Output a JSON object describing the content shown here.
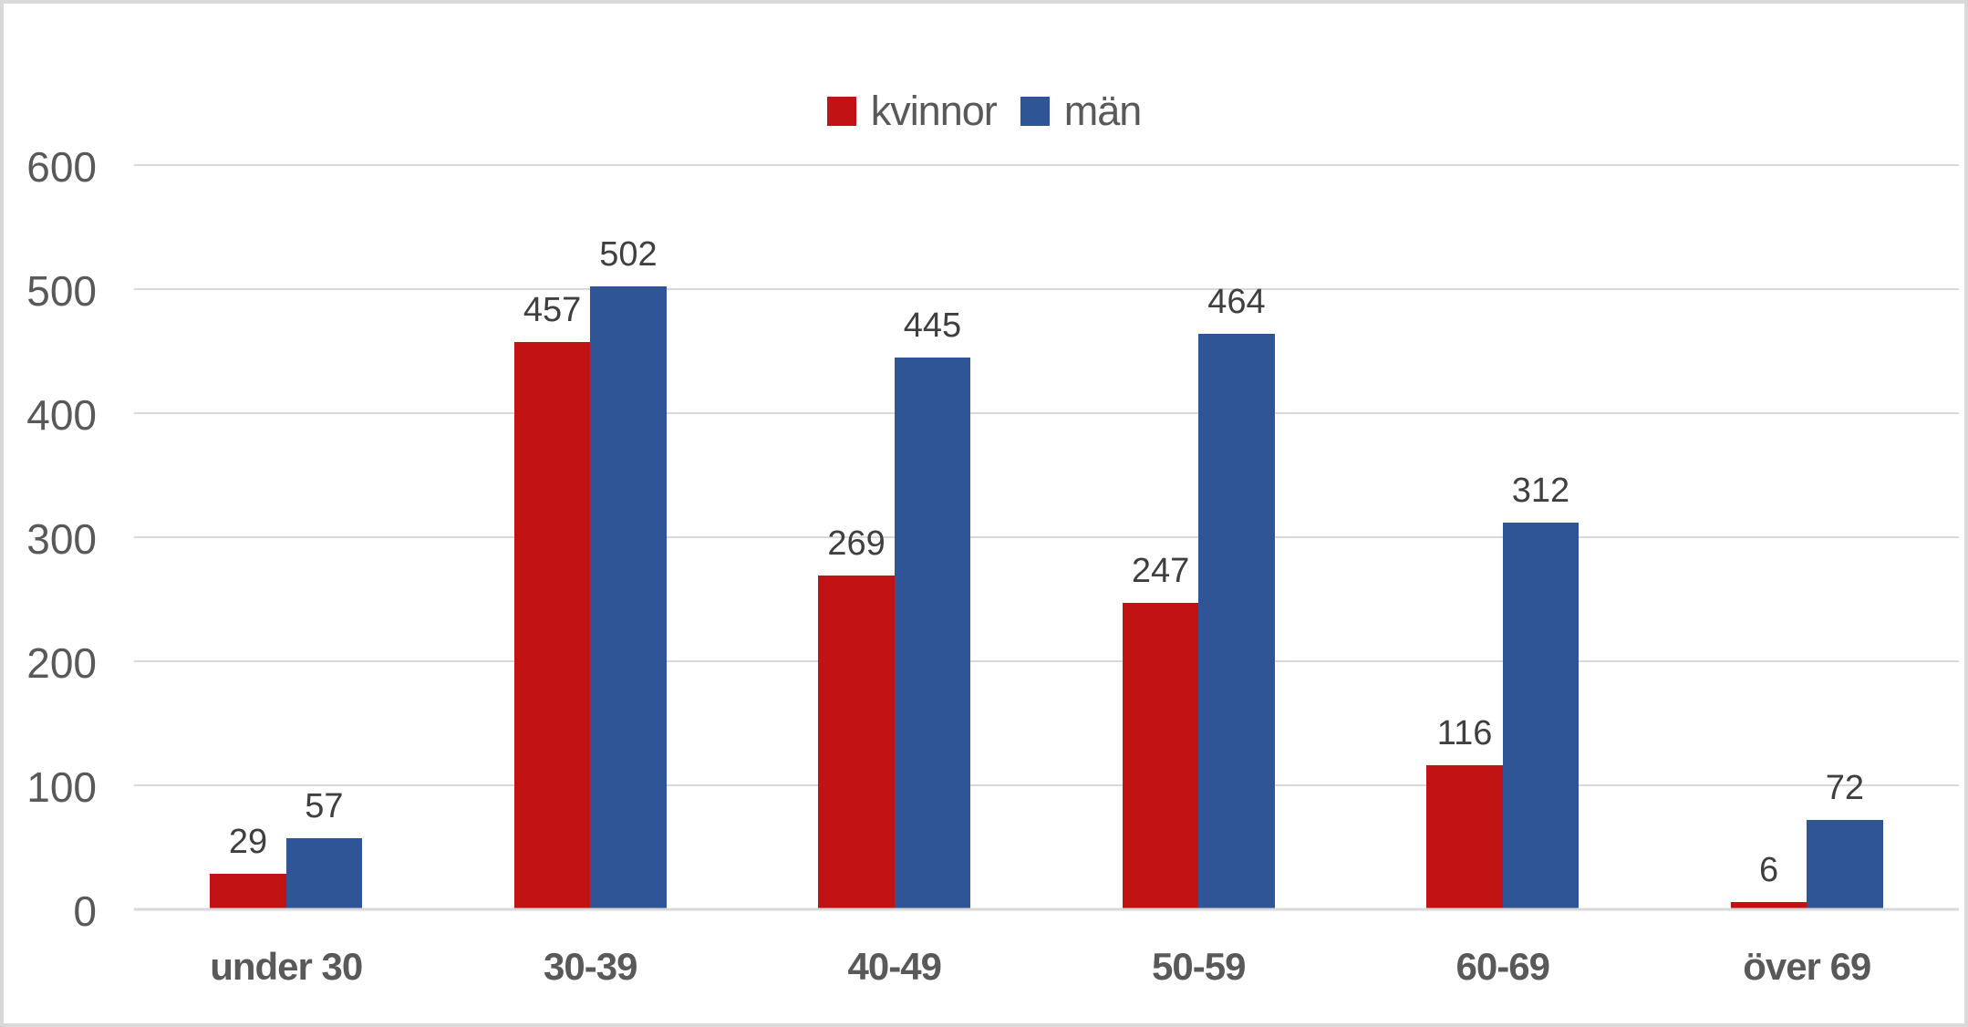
{
  "chart_data": {
    "type": "bar",
    "title": "",
    "categories": [
      "under 30",
      "30-39",
      "40-49",
      "50-59",
      "60-69",
      "över 69"
    ],
    "series": [
      {
        "name": "kvinnor",
        "color": "#C21314",
        "values": [
          29,
          457,
          269,
          247,
          116,
          6
        ]
      },
      {
        "name": "män",
        "color": "#2F5596",
        "values": [
          57,
          502,
          445,
          464,
          312,
          72
        ]
      }
    ],
    "ylim": [
      0,
      600
    ],
    "yticks": [
      0,
      100,
      200,
      300,
      400,
      500,
      600
    ],
    "grid": true,
    "data_labels": true,
    "legend_position": "top-center",
    "colors": {
      "gridline": "#D9D9D9",
      "frame_border": "#D9D9D9",
      "axis_text": "#595959",
      "data_label_text": "#3F3F3F"
    }
  }
}
